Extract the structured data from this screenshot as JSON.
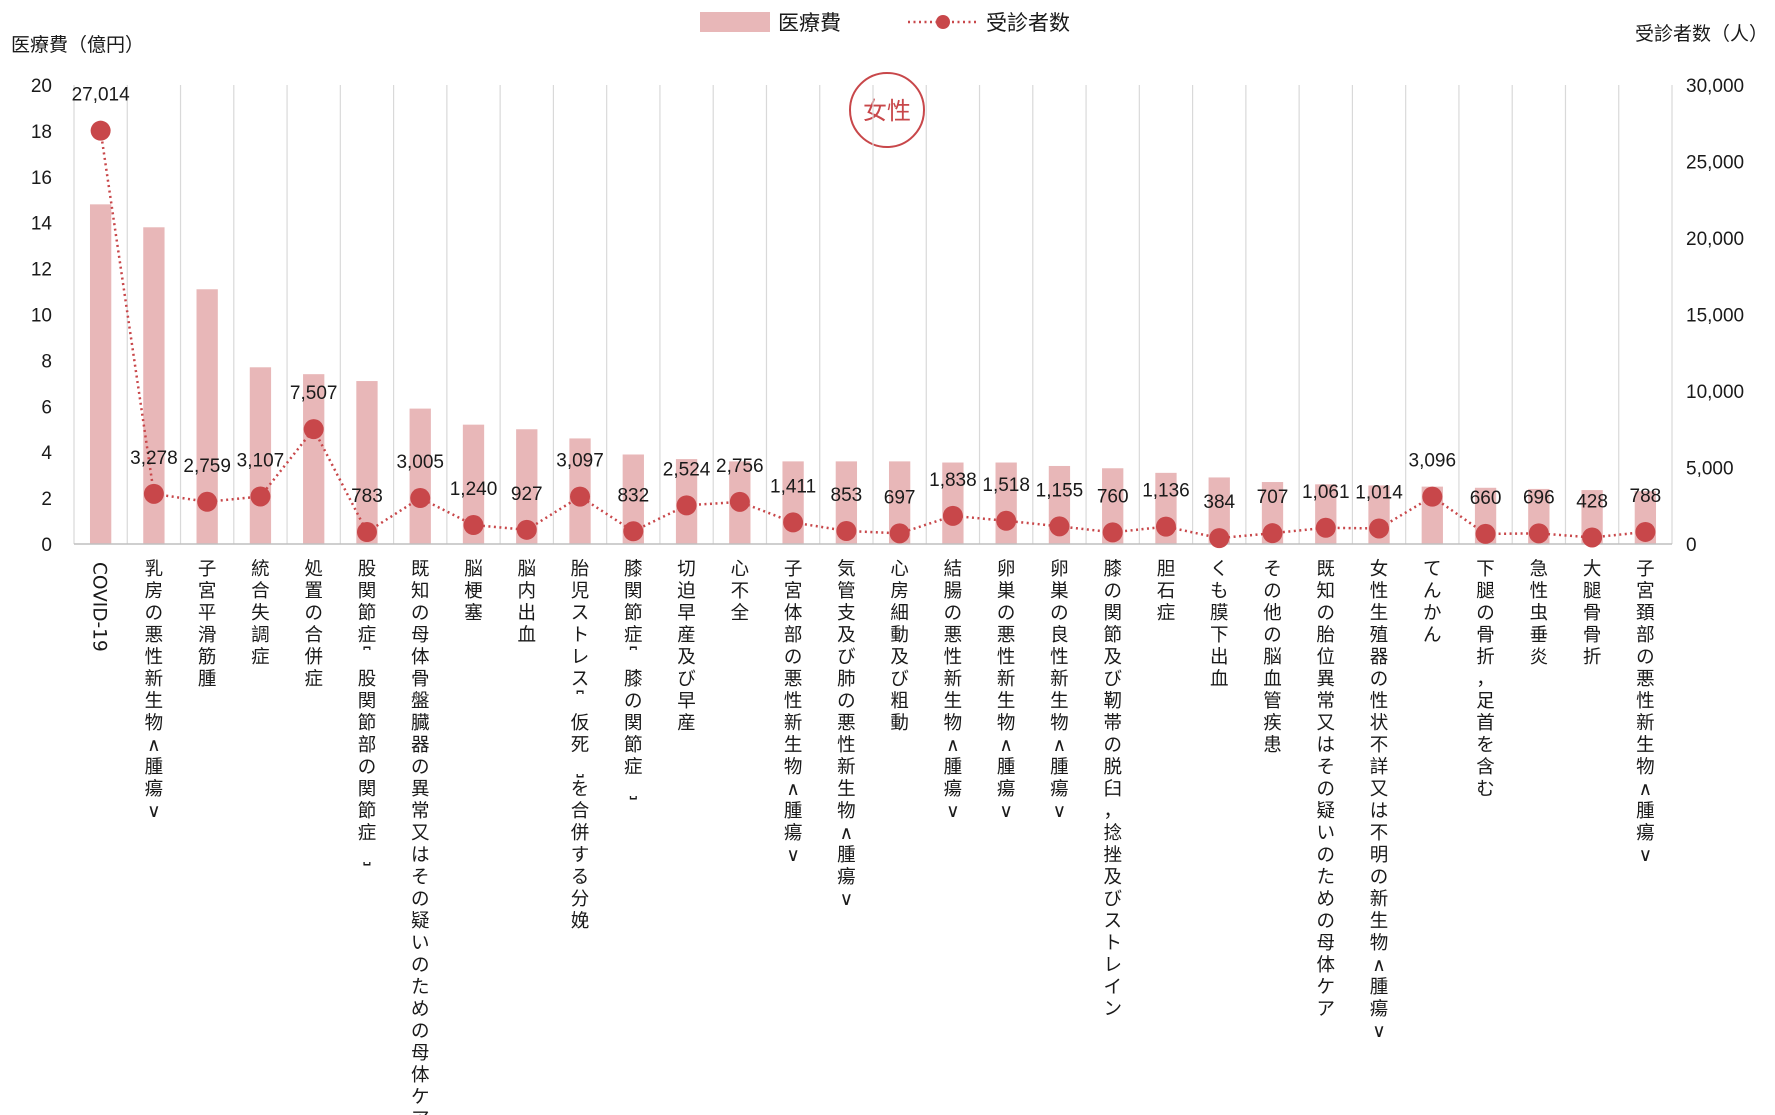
{
  "legend": {
    "bar_label": "医療費",
    "line_label": "受診者数"
  },
  "badge": "女性",
  "colors": {
    "bar": "#e8b7b8",
    "line": "#c8474a",
    "grid": "#d9d9d9",
    "axis": "#bfbfbf"
  },
  "chart_data": {
    "type": "bar",
    "ylabel": "医療費（億円）",
    "y2label": "受診者数（人）",
    "ylim": [
      0,
      20
    ],
    "yticks": [
      0,
      2,
      4,
      6,
      8,
      10,
      12,
      14,
      16,
      18,
      20
    ],
    "y2lim": [
      0,
      30000
    ],
    "y2ticks": [
      "0",
      "5,000",
      "10,000",
      "15,000",
      "20,000",
      "25,000",
      "30,000"
    ],
    "grid": "vertical",
    "legend_position": "top-center",
    "categories": [
      "COVID-19",
      "乳房の悪性新生物<腫瘍>",
      "子宮平滑筋腫",
      "統合失調症",
      "処置の合併症",
      "股関節症[股関節部の関節症]",
      "既知の母体骨盤臓器の異常又はその疑いのための母体ケア",
      "脳梗塞",
      "脳内出血",
      "胎児ストレス[仮死]を合併する分娩",
      "膝関節症[膝の関節症]",
      "切迫早産及び早産",
      "心不全",
      "子宮体部の悪性新生物<腫瘍>",
      "気管支及び肺の悪性新生物<腫瘍>",
      "心房細動及び粗動",
      "結腸の悪性新生物<腫瘍>",
      "卵巣の悪性新生物<腫瘍>",
      "卵巣の良性新生物<腫瘍>",
      "膝の関節及び靭帯の脱臼，捻挫及びストレイン",
      "胆石症",
      "くも膜下出血",
      "その他の脳血管疾患",
      "既知の胎位異常又はその疑いのための母体ケア",
      "女性生殖器の性状不詳又は不明の新生物<腫瘍>",
      "てんかん",
      "下腿の骨折，足首を含む",
      "急性虫垂炎",
      "大腿骨骨折",
      "子宮頚部の悪性新生物<腫瘍>"
    ],
    "series": [
      {
        "name": "医療費",
        "type": "bar",
        "axis": "left",
        "values": [
          14.8,
          13.8,
          11.1,
          7.7,
          7.4,
          7.1,
          5.9,
          5.2,
          5.0,
          4.6,
          3.9,
          3.7,
          3.6,
          3.6,
          3.6,
          3.6,
          3.55,
          3.55,
          3.4,
          3.3,
          3.1,
          2.9,
          2.7,
          2.6,
          2.55,
          2.5,
          2.45,
          2.4,
          2.35,
          2.3
        ]
      },
      {
        "name": "受診者数",
        "type": "line",
        "axis": "right",
        "values": [
          27014,
          3278,
          2759,
          3107,
          7507,
          783,
          3005,
          1240,
          927,
          3097,
          832,
          2524,
          2756,
          1411,
          853,
          697,
          1838,
          1518,
          1155,
          760,
          1136,
          384,
          707,
          1061,
          1014,
          3096,
          660,
          696,
          428,
          788
        ],
        "labels": [
          "27,014",
          "3,278",
          "2,759",
          "3,107",
          "7,507",
          "783",
          "3,005",
          "1,240",
          "927",
          "3,097",
          "832",
          "2,524",
          "2,756",
          "1,411",
          "853",
          "697",
          "1,838",
          "1,518",
          "1,155",
          "760",
          "1,136",
          "384",
          "707",
          "1,061",
          "1,014",
          "3,096",
          "660",
          "696",
          "428",
          "788"
        ]
      }
    ]
  }
}
